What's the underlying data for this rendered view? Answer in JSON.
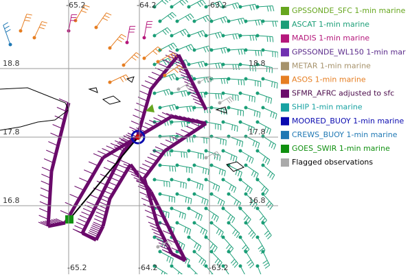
{
  "map": {
    "lon_labels_top": [
      -65.2,
      -64.2,
      -63.2
    ],
    "lon_labels_bottom": [
      -65.2,
      -64.2,
      -63.2
    ],
    "lat_labels_left": [
      18.8,
      17.8,
      16.8
    ],
    "lat_labels_right": [
      18.8,
      17.8,
      16.8
    ]
  },
  "legend": [
    {
      "label": "GPSSONDE_SFC 1-min marine",
      "color": "#66a61e",
      "text_color": "#66a61e"
    },
    {
      "label": "ASCAT 1-min marine",
      "color": "#1b9e77",
      "text_color": "#1b9e77"
    },
    {
      "label": "MADIS 1-min marine",
      "color": "#b5177b",
      "text_color": "#b5177b"
    },
    {
      "label": "GPSSONDE_WL150 1-min mar",
      "color": "#7030b0",
      "text_color": "#5a2a8a"
    },
    {
      "label": "METAR 1-min marine",
      "color": "#a6926b",
      "text_color": "#a6926b"
    },
    {
      "label": "ASOS 1-min marine",
      "color": "#e67e22",
      "text_color": "#e67e22"
    },
    {
      "label": "SFMR_AFRC adjusted to sfc",
      "color": "#6a0a6a",
      "text_color": "#4a0a4a"
    },
    {
      "label": "SHIP 1-min marine",
      "color": "#17a2a2",
      "text_color": "#17a2a2"
    },
    {
      "label": "MOORED_BUOY 1-min marine",
      "color": "#0a0ab0",
      "text_color": "#0a0ab0"
    },
    {
      "label": "CREWS_BUOY 1-min marine",
      "color": "#1f78b4",
      "text_color": "#1f78b4"
    },
    {
      "label": "GOES_SWIR 1-min marine",
      "color": "#109010",
      "text_color": "#109010"
    },
    {
      "label": "Flagged observations",
      "color": "#aaaaaa",
      "text_color": "#000000"
    }
  ]
}
